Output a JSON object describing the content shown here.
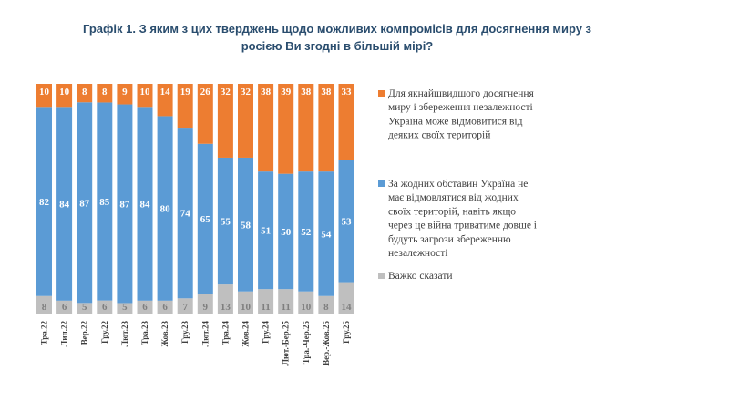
{
  "title_lines": [
    "Графік 1. З яким з цих тверджень щодо можливих компромісів для досягнення миру з",
    "росією Ви згодні в більшій мірі?"
  ],
  "colors": {
    "orange": "#ED7D31",
    "blue": "#5B9BD5",
    "gray": "#BFBFBF"
  },
  "chart_data": {
    "type": "bar",
    "stacked": true,
    "categories": [
      "Тра.22",
      "Лип.22",
      "Вер.22",
      "Гру.22",
      "Лют.23",
      "Тра.23",
      "Жов.23",
      "Гру.23",
      "Лют.24",
      "Тра.24",
      "Жов.24",
      "Гру.24",
      "Лют.-Бер.25",
      "Тра.-Чер.25",
      "Вер.-Жов.25",
      "Гру.25"
    ],
    "series": [
      {
        "name": "Важко сказати",
        "color": "#BFBFBF",
        "values": [
          8,
          6,
          5,
          6,
          5,
          6,
          6,
          7,
          9,
          13,
          10,
          11,
          11,
          10,
          8,
          14
        ]
      },
      {
        "name": "За жодних обставин Україна не має відмовлятися від жодних своїх територій, навіть якщо через це війна триватиме довше і будуть загрози збереженню незалежності",
        "color": "#5B9BD5",
        "values": [
          82,
          84,
          87,
          85,
          87,
          84,
          80,
          74,
          65,
          55,
          58,
          51,
          50,
          52,
          54,
          53
        ]
      },
      {
        "name": "Для якнайшвидшого досягнення миру і збереження незалежності Україна може відмовитися від деяких своїх територій",
        "color": "#ED7D31",
        "values": [
          10,
          10,
          8,
          8,
          9,
          10,
          14,
          19,
          26,
          32,
          32,
          38,
          39,
          38,
          38,
          33
        ]
      }
    ],
    "legend_position": "right",
    "grid": false
  },
  "legend": [
    {
      "lines": [
        "Для якнайшвидшого досягнення",
        "миру і збереження незалежності",
        "Україна може відмовитися від",
        "деяких своїх територій"
      ],
      "color": "#ED7D31"
    },
    {
      "lines": [
        "За жодних обставин Україна не",
        "має відмовлятися від жодних",
        "своїх територій, навіть якщо",
        "через це війна триватиме довше і",
        "будуть загрози збереженню",
        "незалежності"
      ],
      "color": "#5B9BD5"
    },
    {
      "lines": [
        "Важко сказати"
      ],
      "color": "#BFBFBF"
    }
  ]
}
